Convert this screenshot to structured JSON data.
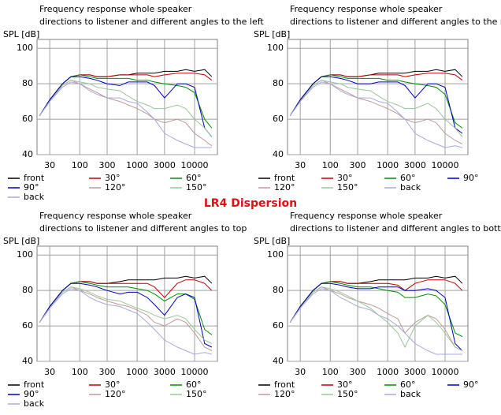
{
  "heading": "LR4 Dispersion",
  "chart_data": [
    {
      "type": "line",
      "title": [
        "Frequency response whole speaker",
        "directions to listener and different angles to the left"
      ],
      "ylabel": "SPL [dB]",
      "log_x": true,
      "grid": true,
      "xlim": [
        18,
        25000
      ],
      "xticks": [
        30,
        100,
        300,
        1000,
        3000,
        10000
      ],
      "ylim": [
        40,
        105
      ],
      "yticks": [
        40,
        60,
        80,
        100
      ],
      "x": [
        20,
        30,
        50,
        70,
        100,
        150,
        200,
        300,
        500,
        700,
        1000,
        1500,
        2000,
        3000,
        5000,
        7000,
        10000,
        15000,
        20000
      ],
      "series": [
        {
          "name": "front",
          "color": "#000000",
          "values": [
            62,
            71,
            80,
            84,
            85,
            85,
            84,
            84,
            85,
            85,
            86,
            86,
            86,
            87,
            87,
            88,
            87,
            88,
            84
          ]
        },
        {
          "name": "30°",
          "color": "#c00000",
          "values": [
            62,
            71,
            80,
            84,
            85,
            85,
            84,
            84,
            85,
            85,
            85,
            85,
            84,
            85,
            86,
            86,
            86,
            85,
            82
          ]
        },
        {
          "name": "60°",
          "color": "#009000",
          "values": [
            62,
            71,
            80,
            84,
            85,
            84,
            83,
            83,
            83,
            83,
            82,
            82,
            81,
            80,
            79,
            78,
            75,
            60,
            55
          ]
        },
        {
          "name": "90°",
          "color": "#0000c0",
          "values": [
            62,
            71,
            80,
            84,
            84,
            83,
            82,
            80,
            79,
            81,
            81,
            81,
            79,
            72,
            80,
            80,
            78,
            55,
            50
          ]
        },
        {
          "name": "120°",
          "color": "#c09898",
          "values": [
            62,
            70,
            79,
            82,
            80,
            77,
            75,
            72,
            70,
            68,
            66,
            63,
            60,
            58,
            60,
            58,
            52,
            48,
            45
          ]
        },
        {
          "name": "150°",
          "color": "#98c898",
          "values": [
            62,
            70,
            79,
            82,
            81,
            80,
            78,
            77,
            76,
            73,
            70,
            68,
            66,
            66,
            68,
            66,
            60,
            55,
            50
          ]
        },
        {
          "name": "back",
          "color": "#a8a8e0",
          "values": [
            62,
            70,
            78,
            81,
            80,
            76,
            74,
            72,
            72,
            70,
            69,
            64,
            60,
            52,
            48,
            46,
            44,
            44,
            44
          ]
        }
      ]
    },
    {
      "type": "line",
      "title": [
        "Frequency response whole speaker",
        "directions to listener and different angles to the right"
      ],
      "ylabel": "SPL [dB]",
      "log_x": true,
      "grid": true,
      "xlim": [
        18,
        25000
      ],
      "xticks": [
        30,
        100,
        300,
        1000,
        3000,
        10000
      ],
      "ylim": [
        40,
        105
      ],
      "yticks": [
        40,
        60,
        80,
        100
      ],
      "x": [
        20,
        30,
        50,
        70,
        100,
        150,
        200,
        300,
        500,
        700,
        1000,
        1500,
        2000,
        3000,
        5000,
        7000,
        10000,
        15000,
        20000
      ],
      "series": [
        {
          "name": "front",
          "color": "#000000",
          "values": [
            62,
            71,
            80,
            84,
            85,
            85,
            84,
            84,
            85,
            86,
            86,
            86,
            86,
            87,
            87,
            88,
            87,
            88,
            84
          ]
        },
        {
          "name": "30°",
          "color": "#c00000",
          "values": [
            62,
            71,
            80,
            84,
            85,
            85,
            84,
            84,
            85,
            85,
            85,
            85,
            84,
            85,
            86,
            86,
            86,
            85,
            82
          ]
        },
        {
          "name": "60°",
          "color": "#009000",
          "values": [
            62,
            71,
            80,
            84,
            85,
            84,
            83,
            83,
            83,
            83,
            82,
            82,
            81,
            80,
            79,
            78,
            74,
            58,
            55
          ]
        },
        {
          "name": "90°",
          "color": "#0000c0",
          "values": [
            62,
            71,
            80,
            84,
            84,
            83,
            82,
            80,
            80,
            81,
            81,
            81,
            79,
            72,
            80,
            80,
            78,
            55,
            52
          ]
        },
        {
          "name": "120°",
          "color": "#c09898",
          "values": [
            62,
            70,
            79,
            82,
            80,
            77,
            75,
            72,
            70,
            68,
            66,
            63,
            60,
            58,
            60,
            58,
            52,
            48,
            46
          ]
        },
        {
          "name": "150°",
          "color": "#98c898",
          "values": [
            62,
            70,
            79,
            82,
            81,
            80,
            78,
            77,
            76,
            73,
            70,
            68,
            66,
            66,
            69,
            66,
            60,
            55,
            50
          ]
        },
        {
          "name": "back",
          "color": "#a8a8e0",
          "values": [
            62,
            70,
            78,
            81,
            80,
            76,
            74,
            72,
            72,
            70,
            69,
            64,
            60,
            52,
            48,
            46,
            44,
            45,
            44
          ]
        }
      ]
    },
    {
      "type": "line",
      "title": [
        "Frequency response whole speaker",
        "directions to listener and different angles to top"
      ],
      "ylabel": "SPL [dB]",
      "log_x": true,
      "grid": true,
      "xlim": [
        18,
        25000
      ],
      "xticks": [
        30,
        100,
        300,
        1000,
        3000,
        10000
      ],
      "ylim": [
        40,
        105
      ],
      "yticks": [
        40,
        60,
        80,
        100
      ],
      "x": [
        20,
        30,
        50,
        70,
        100,
        150,
        200,
        300,
        500,
        700,
        1000,
        1500,
        2000,
        3000,
        5000,
        7000,
        10000,
        15000,
        20000
      ],
      "series": [
        {
          "name": "front",
          "color": "#000000",
          "values": [
            62,
            71,
            80,
            84,
            85,
            85,
            84,
            84,
            85,
            86,
            86,
            86,
            86,
            87,
            87,
            88,
            87,
            88,
            84
          ]
        },
        {
          "name": "30°",
          "color": "#c00000",
          "values": [
            62,
            71,
            80,
            84,
            85,
            85,
            84,
            84,
            84,
            84,
            84,
            84,
            82,
            76,
            84,
            86,
            86,
            84,
            80
          ]
        },
        {
          "name": "60°",
          "color": "#009000",
          "values": [
            62,
            71,
            80,
            84,
            85,
            84,
            83,
            82,
            82,
            82,
            81,
            80,
            78,
            74,
            78,
            78,
            75,
            58,
            55
          ]
        },
        {
          "name": "90°",
          "color": "#0000c0",
          "values": [
            62,
            71,
            80,
            84,
            84,
            83,
            82,
            80,
            78,
            79,
            79,
            76,
            72,
            66,
            76,
            78,
            76,
            50,
            48
          ]
        },
        {
          "name": "120°",
          "color": "#c09898",
          "values": [
            62,
            70,
            79,
            82,
            80,
            78,
            76,
            74,
            72,
            71,
            69,
            66,
            62,
            60,
            64,
            62,
            56,
            48,
            46
          ]
        },
        {
          "name": "150°",
          "color": "#98c898",
          "values": [
            62,
            70,
            79,
            82,
            81,
            79,
            77,
            75,
            74,
            72,
            70,
            68,
            66,
            64,
            66,
            64,
            58,
            52,
            50
          ]
        },
        {
          "name": "back",
          "color": "#a8a8e0",
          "values": [
            62,
            70,
            78,
            81,
            80,
            76,
            74,
            72,
            71,
            69,
            67,
            62,
            58,
            52,
            48,
            46,
            44,
            45,
            44
          ]
        }
      ]
    },
    {
      "type": "line",
      "title": [
        "Frequency response whole speaker",
        "directions to listener and different angles to bottom"
      ],
      "ylabel": "SPL [dB]",
      "log_x": true,
      "grid": true,
      "xlim": [
        18,
        25000
      ],
      "xticks": [
        30,
        100,
        300,
        1000,
        3000,
        10000
      ],
      "ylim": [
        40,
        105
      ],
      "yticks": [
        40,
        60,
        80,
        100
      ],
      "x": [
        20,
        30,
        50,
        70,
        100,
        150,
        200,
        300,
        500,
        700,
        1000,
        1500,
        2000,
        3000,
        5000,
        7000,
        10000,
        15000,
        20000
      ],
      "series": [
        {
          "name": "front",
          "color": "#000000",
          "values": [
            62,
            71,
            80,
            84,
            85,
            85,
            84,
            84,
            85,
            86,
            86,
            86,
            86,
            87,
            87,
            88,
            87,
            88,
            84
          ]
        },
        {
          "name": "30°",
          "color": "#c00000",
          "values": [
            62,
            71,
            80,
            84,
            85,
            85,
            84,
            84,
            84,
            84,
            84,
            83,
            80,
            84,
            86,
            86,
            86,
            84,
            80
          ]
        },
        {
          "name": "60°",
          "color": "#009000",
          "values": [
            62,
            71,
            80,
            84,
            85,
            84,
            83,
            82,
            82,
            81,
            80,
            79,
            76,
            76,
            78,
            77,
            72,
            56,
            54
          ]
        },
        {
          "name": "90°",
          "color": "#0000c0",
          "values": [
            62,
            71,
            80,
            84,
            84,
            83,
            82,
            81,
            81,
            82,
            82,
            82,
            80,
            80,
            81,
            80,
            76,
            50,
            46
          ]
        },
        {
          "name": "120°",
          "color": "#c09898",
          "values": [
            62,
            70,
            79,
            82,
            80,
            78,
            76,
            74,
            72,
            70,
            67,
            64,
            56,
            62,
            66,
            64,
            58,
            48,
            46
          ]
        },
        {
          "name": "150°",
          "color": "#98c898",
          "values": [
            62,
            70,
            79,
            82,
            81,
            79,
            77,
            74,
            70,
            66,
            62,
            56,
            48,
            60,
            66,
            62,
            56,
            48,
            46
          ]
        },
        {
          "name": "back",
          "color": "#a8a8e0",
          "values": [
            62,
            70,
            78,
            81,
            80,
            76,
            74,
            71,
            69,
            66,
            64,
            60,
            56,
            50,
            46,
            44,
            44,
            44,
            44
          ]
        }
      ]
    }
  ]
}
